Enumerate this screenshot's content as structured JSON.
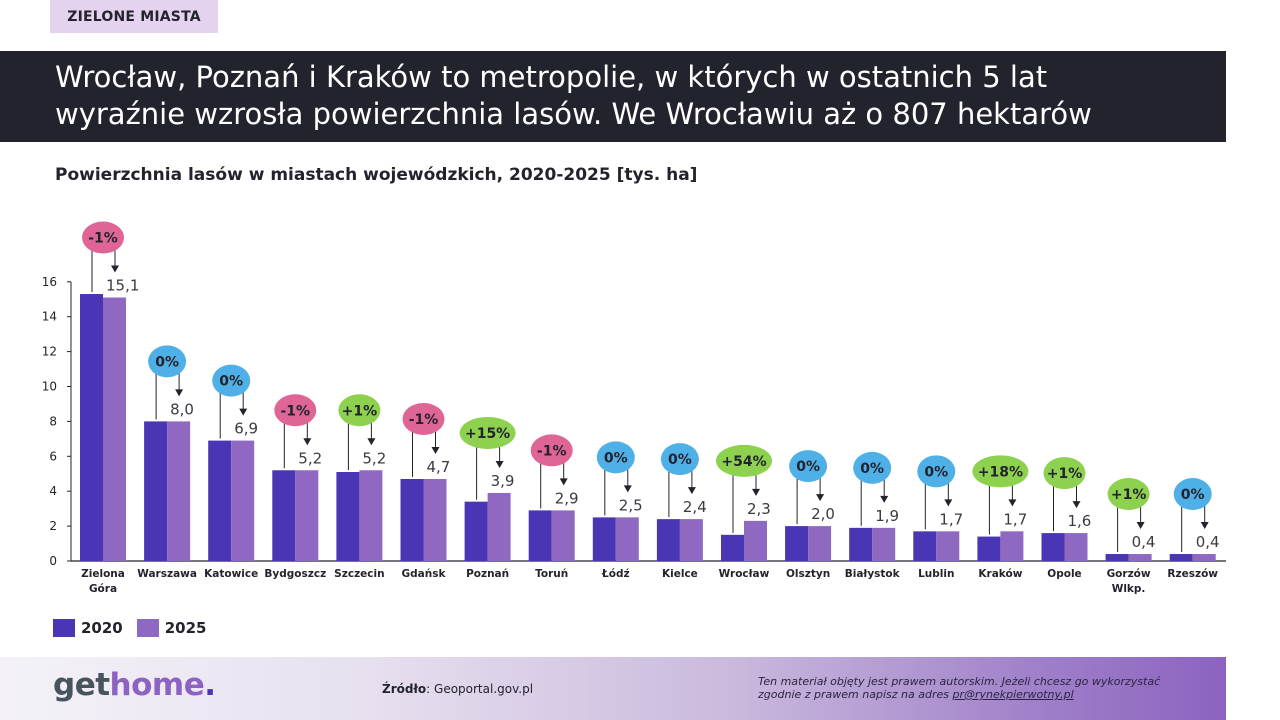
{
  "tag": "ZIELONE MIASTA",
  "headline": {
    "line1": "Wrocław, Poznań i Kraków to metropolie, w których w ostatnich 5 lat",
    "line2": "wyraźnie wzrosła powierzchnia lasów. We Wrocławiu aż o 807 hektarów"
  },
  "chart_title": "Powierzchnia lasów w miastach wojewódzkich, 2020-2025 [tys. ha]",
  "legend": [
    {
      "label": "2020",
      "color": "#4a36b5"
    },
    {
      "label": "2025",
      "color": "#8f69c1"
    }
  ],
  "footer": {
    "logo_get": "get",
    "logo_home": "home",
    "logo_dot": ".",
    "source_label": "Źródło",
    "source_value": ": Geoportal.gov.pl",
    "copyright_line1": "Ten materiał objęty jest prawem autorskim. Jeżeli chcesz go wykorzystać",
    "copyright_line2_prefix": "zgodnie z prawem napisz na adres ",
    "copyright_email": "pr@rynekpierwotny.pl"
  },
  "colors": {
    "bar_2020": "#4a36b5",
    "bar_2025": "#8f69c1",
    "pill_negative": "#df6597",
    "pill_zero": "#4fb0e8",
    "pill_positive": "#8dd14f",
    "headline_bg": "#23232d",
    "tag_bg": "#e4d3ee"
  },
  "chart_data": {
    "type": "bar",
    "title": "Powierzchnia lasów w miastach wojewódzkich, 2020-2025 [tys. ha]",
    "xlabel": "",
    "ylabel": "tys. ha",
    "ylim": [
      0,
      16
    ],
    "yticks": [
      0,
      2,
      4,
      6,
      8,
      10,
      12,
      14,
      16
    ],
    "grid": false,
    "legend_position": "bottom-left",
    "categories": [
      "Zielona Góra",
      "Warszawa",
      "Katowice",
      "Bydgoszcz",
      "Szczecin",
      "Gdańsk",
      "Poznań",
      "Toruń",
      "Łódź",
      "Kielce",
      "Wrocław",
      "Olsztyn",
      "Białystok",
      "Lublin",
      "Kraków",
      "Opole",
      "Gorzów Wlkp.",
      "Rzeszów"
    ],
    "series": [
      {
        "name": "2020",
        "values": [
          15.3,
          8.0,
          6.9,
          5.2,
          5.1,
          4.7,
          3.4,
          2.9,
          2.5,
          2.4,
          1.5,
          2.0,
          1.9,
          1.7,
          1.4,
          1.6,
          0.4,
          0.4
        ]
      },
      {
        "name": "2025",
        "values": [
          15.1,
          8.0,
          6.9,
          5.2,
          5.2,
          4.7,
          3.9,
          2.9,
          2.5,
          2.4,
          2.3,
          2.0,
          1.9,
          1.7,
          1.7,
          1.6,
          0.4,
          0.4
        ]
      }
    ],
    "value_labels_2025": [
      "15,1",
      "8,0",
      "6,9",
      "5,2",
      "5,2",
      "4,7",
      "3,9",
      "2,9",
      "2,5",
      "2,4",
      "2,3",
      "2,0",
      "1,9",
      "1,7",
      "1,7",
      "1,6",
      "0,4",
      "0,4"
    ],
    "change_labels": [
      "-1%",
      "0%",
      "0%",
      "-1%",
      "+1%",
      "-1%",
      "+15%",
      "-1%",
      "0%",
      "0%",
      "+54%",
      "0%",
      "0%",
      "0%",
      "+18%",
      "+1%",
      "+1%",
      "0%"
    ]
  }
}
